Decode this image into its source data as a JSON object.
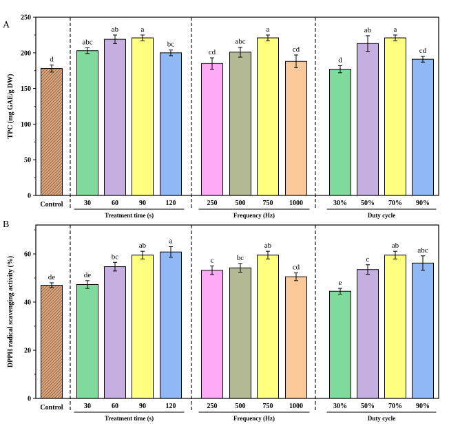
{
  "colors": {
    "control_fill": "#d9a77f",
    "control_hatch": "#6b3a1e",
    "green": "#7fdb9b",
    "purple": "#c5aee0",
    "yellow": "#ffff80",
    "blue": "#8fb8f5",
    "pink": "#ffaaf6",
    "olive": "#b3b992",
    "orange": "#fbc89a"
  },
  "chart_data": [
    {
      "type": "bar",
      "panel": "A",
      "ylabel": "TPC (mg GAE/g DW)",
      "ylim": [
        0,
        250
      ],
      "yticks": [
        0,
        50,
        100,
        150,
        200,
        250
      ],
      "grid": false,
      "groups": [
        {
          "label": "Treatment time (s)",
          "slots": [
            1,
            4
          ]
        },
        {
          "label": "Frequency (Hz)",
          "slots": [
            5,
            8
          ]
        },
        {
          "label": "Duty cycle",
          "slots": [
            9,
            12
          ]
        }
      ],
      "control_label": "Control",
      "categories": [
        "Control",
        "30",
        "60",
        "90",
        "120",
        "250",
        "500",
        "750",
        "1000",
        "30%",
        "50%",
        "70%",
        "90%"
      ],
      "values": [
        178,
        203,
        219,
        221,
        200,
        185,
        201,
        221,
        188,
        177,
        213,
        221,
        191
      ],
      "errors": [
        5,
        4,
        6,
        4,
        4,
        8,
        7,
        4,
        9,
        5,
        11,
        4,
        4
      ],
      "letters": [
        "d",
        "abc",
        "ab",
        "a",
        "bc",
        "cd",
        "abc",
        "a",
        "cd",
        "d",
        "ab",
        "a",
        "cd"
      ],
      "fills": [
        "control_fill",
        "green",
        "purple",
        "yellow",
        "blue",
        "pink",
        "olive",
        "yellow",
        "orange",
        "green",
        "purple",
        "yellow",
        "blue"
      ]
    },
    {
      "type": "bar",
      "panel": "B",
      "ylabel": "DPPH radical scavenging activity (%)",
      "ylim": [
        0,
        72
      ],
      "yticks": [
        0,
        20,
        40,
        60
      ],
      "grid": false,
      "groups": [
        {
          "label": "Treatment time (s)",
          "slots": [
            1,
            4
          ]
        },
        {
          "label": "Frequency (Hz)",
          "slots": [
            5,
            8
          ]
        },
        {
          "label": "Duty cycle",
          "slots": [
            9,
            12
          ]
        }
      ],
      "control_label": "Control",
      "categories": [
        "Control",
        "30",
        "60",
        "90",
        "120",
        "250",
        "500",
        "750",
        "1000",
        "30%",
        "50%",
        "70%",
        "90%"
      ],
      "values": [
        47,
        47.3,
        54.7,
        59.5,
        60.8,
        53.2,
        54.2,
        59.5,
        50.5,
        44.5,
        53.5,
        59.5,
        56.2
      ],
      "errors": [
        1,
        1.6,
        1.8,
        1.6,
        2.2,
        1.8,
        1.8,
        1.6,
        1.6,
        1.2,
        2,
        1.6,
        3
      ],
      "letters": [
        "de",
        "de",
        "bc",
        "ab",
        "a",
        "c",
        "bc",
        "ab",
        "cd",
        "e",
        "c",
        "ab",
        "abc"
      ],
      "fills": [
        "control_fill",
        "green",
        "purple",
        "yellow",
        "blue",
        "pink",
        "olive",
        "yellow",
        "orange",
        "green",
        "purple",
        "yellow",
        "blue"
      ]
    }
  ]
}
